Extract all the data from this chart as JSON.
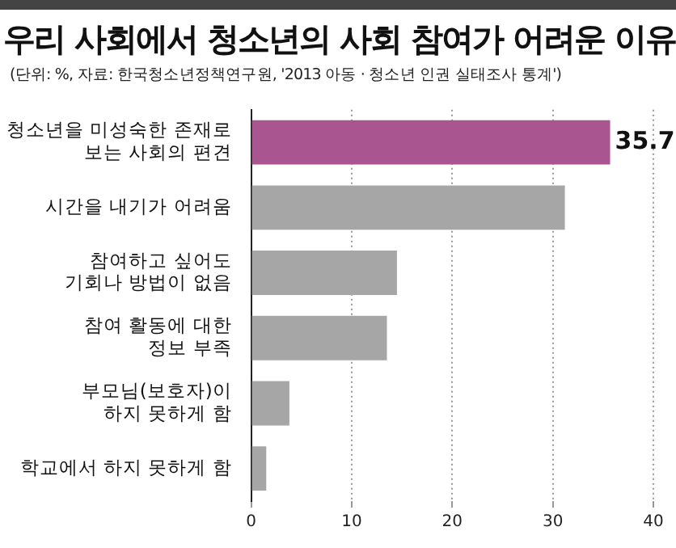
{
  "chart_data": {
    "type": "bar",
    "orientation": "horizontal",
    "title": "우리 사회에서 청소년의 사회 참여가 어려운 이유",
    "subtitle": "(단위: %, 자료: 한국청소년정책연구원, '2013 아동 · 청소년 인권 실태조사 통계')",
    "categories": [
      "청소년을 미성숙한 존재로\n보는 사회의 편견",
      "시간을 내기가 어려움",
      "참여하고 싶어도\n기회나 방법이 없음",
      "참여 활동에 대한\n정보 부족",
      "부모님(보호자)이\n하지 못하게 함",
      "학교에서 하지 못하게 함"
    ],
    "values": [
      35.7,
      31.2,
      14.5,
      13.5,
      3.8,
      1.5
    ],
    "colors": [
      "#a9558f",
      "#a6a6a6",
      "#a6a6a6",
      "#a6a6a6",
      "#a6a6a6",
      "#a6a6a6"
    ],
    "value_labels": [
      "35.7",
      null,
      null,
      null,
      null,
      null
    ],
    "xlim": [
      0,
      40
    ],
    "xticks": [
      0,
      10,
      20,
      30,
      40
    ],
    "grid": "x"
  }
}
